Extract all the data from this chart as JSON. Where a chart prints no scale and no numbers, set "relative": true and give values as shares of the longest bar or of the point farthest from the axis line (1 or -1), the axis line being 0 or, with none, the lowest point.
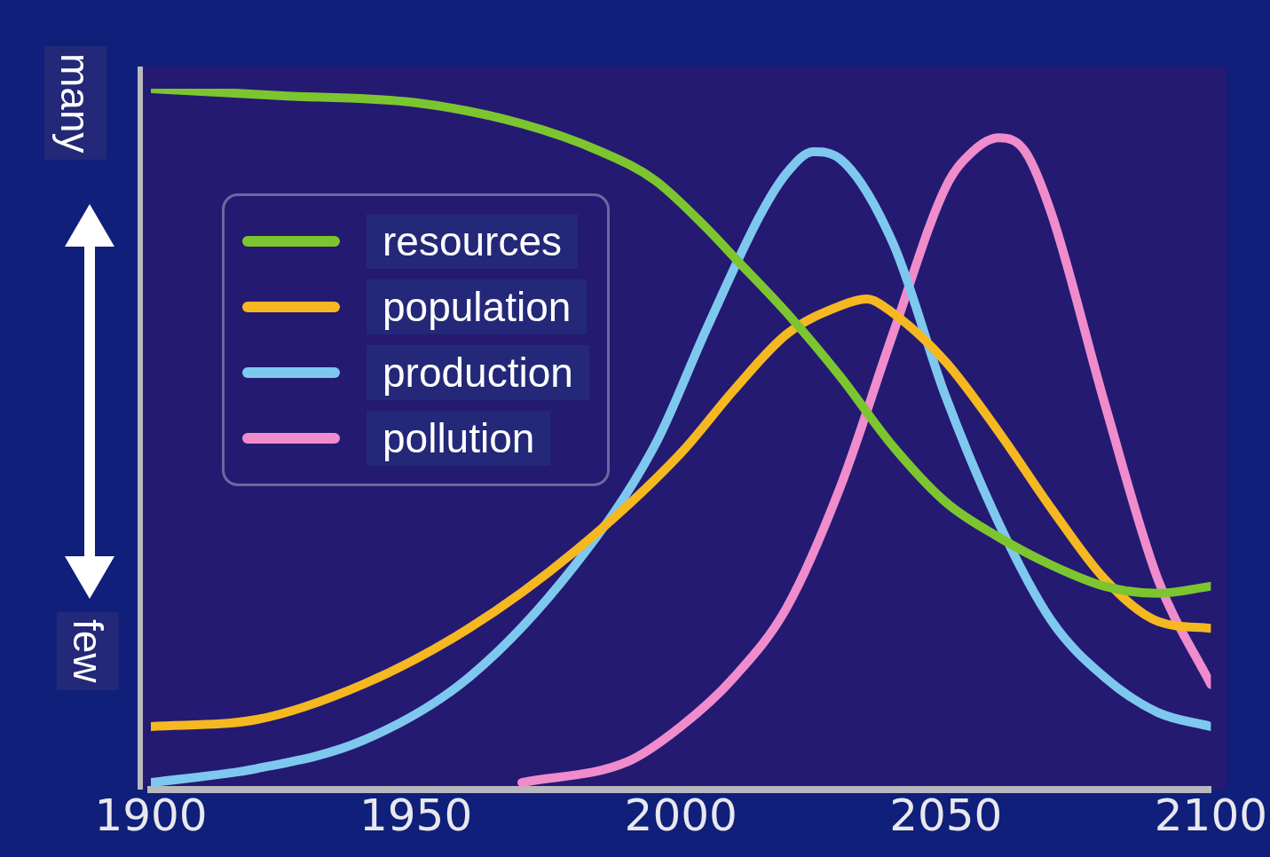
{
  "chart_data": {
    "type": "line",
    "relative": true,
    "annotations": [
      "many",
      "few"
    ],
    "xlim": [
      1900,
      2100
    ],
    "xticks": [
      1900,
      1950,
      2000,
      2050,
      2100
    ],
    "grid": false,
    "legend": "top left",
    "marker": "none",
    "line_style": "solid",
    "series": [
      {
        "name": "resources",
        "color": "#7dc52e",
        "x": [
          1900,
          1925,
          1950,
          1970,
          1985,
          1995,
          2005,
          2010,
          2020,
          2030,
          2040,
          2050,
          2060,
          2070,
          2080,
          2090,
          2100
        ],
        "values": [
          1.0,
          0.99,
          0.98,
          0.95,
          0.91,
          0.87,
          0.8,
          0.76,
          0.68,
          0.59,
          0.49,
          0.41,
          0.36,
          0.32,
          0.29,
          0.28,
          0.29
        ]
      },
      {
        "name": "population",
        "color": "#f5b820",
        "x": [
          1900,
          1920,
          1940,
          1960,
          1980,
          2000,
          2010,
          2020,
          2030,
          2035,
          2040,
          2050,
          2060,
          2070,
          2080,
          2090,
          2100
        ],
        "values": [
          0.09,
          0.1,
          0.15,
          0.23,
          0.34,
          0.48,
          0.57,
          0.65,
          0.69,
          0.7,
          0.68,
          0.61,
          0.51,
          0.4,
          0.3,
          0.24,
          0.23
        ]
      },
      {
        "name": "production",
        "color": "#7ec8f0",
        "x": [
          1900,
          1920,
          1940,
          1960,
          1980,
          1995,
          2005,
          2015,
          2020,
          2025,
          2030,
          2040,
          2050,
          2060,
          2070,
          2080,
          2090,
          2100
        ],
        "values": [
          0.01,
          0.03,
          0.07,
          0.16,
          0.32,
          0.49,
          0.66,
          0.82,
          0.88,
          0.91,
          0.9,
          0.78,
          0.56,
          0.38,
          0.24,
          0.16,
          0.11,
          0.09
        ]
      },
      {
        "name": "pollution",
        "color": "#f08ccc",
        "x": [
          1970,
          1990,
          2000,
          2010,
          2020,
          2030,
          2040,
          2050,
          2055,
          2060,
          2065,
          2070,
          2080,
          2090,
          2100
        ],
        "values": [
          0.01,
          0.04,
          0.09,
          0.16,
          0.26,
          0.43,
          0.65,
          0.86,
          0.91,
          0.93,
          0.91,
          0.82,
          0.55,
          0.3,
          0.15
        ]
      }
    ]
  }
}
